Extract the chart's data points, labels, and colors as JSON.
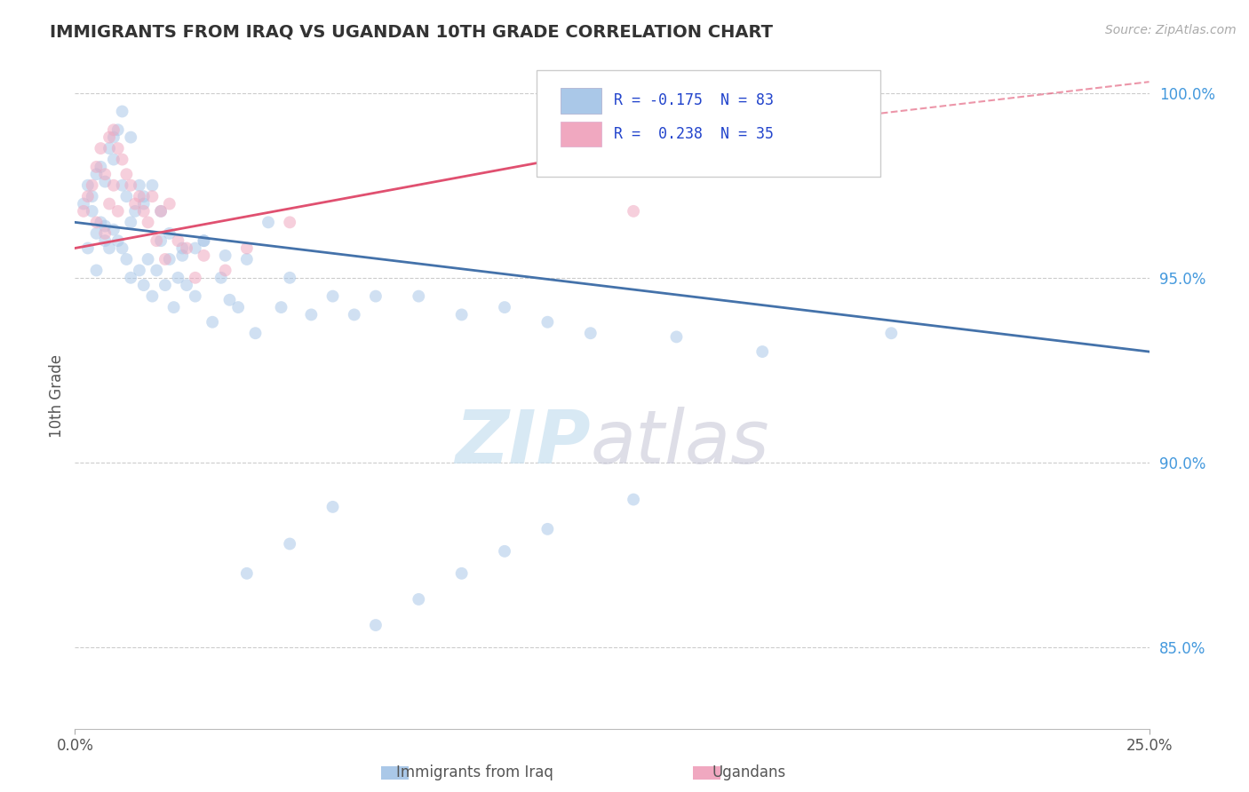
{
  "title": "IMMIGRANTS FROM IRAQ VS UGANDAN 10TH GRADE CORRELATION CHART",
  "source_text": "Source: ZipAtlas.com",
  "ylabel": "10th Grade",
  "xlim": [
    0.0,
    0.25
  ],
  "ylim": [
    0.828,
    1.008
  ],
  "ytick_vals": [
    0.85,
    0.9,
    0.95,
    1.0
  ],
  "ytick_labels": [
    "85.0%",
    "90.0%",
    "95.0%",
    "100.0%"
  ],
  "legend_text1": "R = -0.175  N = 83",
  "legend_text2": "R =  0.238  N = 35",
  "dot_color_blue": "#aac8e8",
  "dot_color_pink": "#f0a8c0",
  "trend_color_blue": "#4472aa",
  "trend_color_pink": "#e05070",
  "dot_size": 100,
  "dot_alpha": 0.55,
  "bg_color": "#ffffff",
  "grid_color": "#cccccc",
  "scatter_blue_x": [
    0.002,
    0.003,
    0.004,
    0.004,
    0.005,
    0.005,
    0.006,
    0.006,
    0.007,
    0.007,
    0.008,
    0.008,
    0.009,
    0.009,
    0.01,
    0.01,
    0.011,
    0.011,
    0.012,
    0.012,
    0.013,
    0.013,
    0.014,
    0.015,
    0.015,
    0.016,
    0.016,
    0.017,
    0.018,
    0.019,
    0.02,
    0.021,
    0.022,
    0.023,
    0.024,
    0.025,
    0.026,
    0.028,
    0.03,
    0.032,
    0.034,
    0.036,
    0.038,
    0.04,
    0.042,
    0.045,
    0.048,
    0.05,
    0.055,
    0.06,
    0.065,
    0.07,
    0.08,
    0.09,
    0.1,
    0.11,
    0.12,
    0.14,
    0.16,
    0.19,
    0.003,
    0.005,
    0.007,
    0.009,
    0.011,
    0.013,
    0.016,
    0.018,
    0.02,
    0.022,
    0.025,
    0.028,
    0.03,
    0.035,
    0.04,
    0.05,
    0.06,
    0.07,
    0.08,
    0.09,
    0.1,
    0.11,
    0.13
  ],
  "scatter_blue_y": [
    0.97,
    0.975,
    0.972,
    0.968,
    0.978,
    0.962,
    0.98,
    0.965,
    0.976,
    0.96,
    0.985,
    0.958,
    0.988,
    0.963,
    0.99,
    0.96,
    0.975,
    0.958,
    0.972,
    0.955,
    0.965,
    0.95,
    0.968,
    0.975,
    0.952,
    0.97,
    0.948,
    0.955,
    0.945,
    0.952,
    0.96,
    0.948,
    0.955,
    0.942,
    0.95,
    0.958,
    0.948,
    0.945,
    0.96,
    0.938,
    0.95,
    0.944,
    0.942,
    0.955,
    0.935,
    0.965,
    0.942,
    0.95,
    0.94,
    0.945,
    0.94,
    0.945,
    0.945,
    0.94,
    0.942,
    0.938,
    0.935,
    0.934,
    0.93,
    0.935,
    0.958,
    0.952,
    0.964,
    0.982,
    0.995,
    0.988,
    0.972,
    0.975,
    0.968,
    0.962,
    0.956,
    0.958,
    0.96,
    0.956,
    0.87,
    0.878,
    0.888,
    0.856,
    0.863,
    0.87,
    0.876,
    0.882,
    0.89
  ],
  "scatter_pink_x": [
    0.002,
    0.003,
    0.004,
    0.005,
    0.005,
    0.006,
    0.007,
    0.007,
    0.008,
    0.008,
    0.009,
    0.009,
    0.01,
    0.01,
    0.011,
    0.012,
    0.013,
    0.014,
    0.015,
    0.016,
    0.017,
    0.018,
    0.019,
    0.02,
    0.021,
    0.022,
    0.024,
    0.026,
    0.028,
    0.03,
    0.035,
    0.04,
    0.05,
    0.13,
    0.15
  ],
  "scatter_pink_y": [
    0.968,
    0.972,
    0.975,
    0.98,
    0.965,
    0.985,
    0.978,
    0.962,
    0.988,
    0.97,
    0.99,
    0.975,
    0.985,
    0.968,
    0.982,
    0.978,
    0.975,
    0.97,
    0.972,
    0.968,
    0.965,
    0.972,
    0.96,
    0.968,
    0.955,
    0.97,
    0.96,
    0.958,
    0.95,
    0.956,
    0.952,
    0.958,
    0.965,
    0.968,
    0.988
  ],
  "trend_blue_x0": 0.0,
  "trend_blue_x1": 0.25,
  "trend_blue_y0": 0.965,
  "trend_blue_y1": 0.93,
  "trend_pink_solid_x0": 0.0,
  "trend_pink_solid_x1": 0.14,
  "trend_pink_solid_y0": 0.958,
  "trend_pink_solid_y1": 0.988,
  "trend_pink_dash_x0": 0.14,
  "trend_pink_dash_x1": 0.25,
  "trend_pink_dash_y0": 0.988,
  "trend_pink_dash_y1": 1.003,
  "watermark_zip_color": "#c8e0f0",
  "watermark_atlas_color": "#c8c8d8"
}
